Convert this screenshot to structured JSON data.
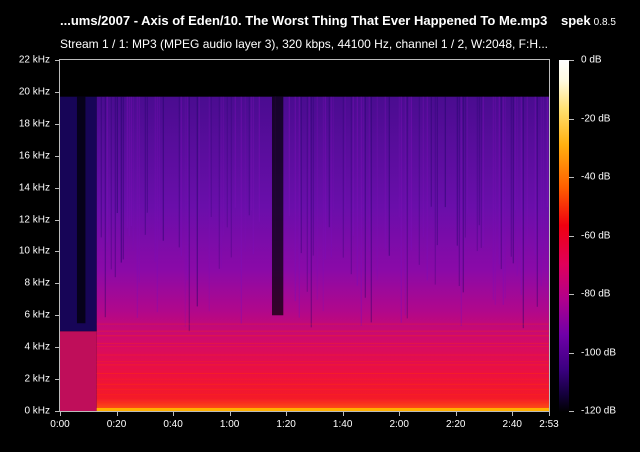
{
  "header": {
    "title": "...ums/2007 - Axis of Eden/10. The Worst Thing That Ever Happened To Me.mp3",
    "app_name": "spek",
    "app_version": "0.8.5",
    "stream_info": "Stream 1 / 1: MP3 (MPEG audio layer 3), 320 kbps, 44100 Hz, channel 1 / 2, W:2048, F:H..."
  },
  "frequency_axis": {
    "labels": [
      "22 kHz",
      "20 kHz",
      "18 kHz",
      "16 kHz",
      "14 kHz",
      "12 kHz",
      "10 kHz",
      "8 kHz",
      "6 kHz",
      "4 kHz",
      "2 kHz",
      "0 kHz"
    ]
  },
  "time_axis": {
    "labels": [
      "0:00",
      "0:20",
      "0:40",
      "1:00",
      "1:20",
      "1:40",
      "2:00",
      "2:20",
      "2:40",
      "2:53"
    ]
  },
  "db_scale": {
    "labels": [
      "0 dB",
      "-20 dB",
      "-40 dB",
      "-60 dB",
      "-80 dB",
      "-100 dB",
      "-120 dB"
    ]
  },
  "spectrogram": {
    "duration_seconds": 173,
    "max_frequency_khz": 22,
    "cutoff_frequency_khz": 19.7,
    "colors": {
      "background": "#000000",
      "low_energy": "#1a0560",
      "mid_energy": "#7d0fb8",
      "high_energy": "#e0106a",
      "peak_energy": "#ff2a12",
      "floor": "#ffb000"
    }
  }
}
